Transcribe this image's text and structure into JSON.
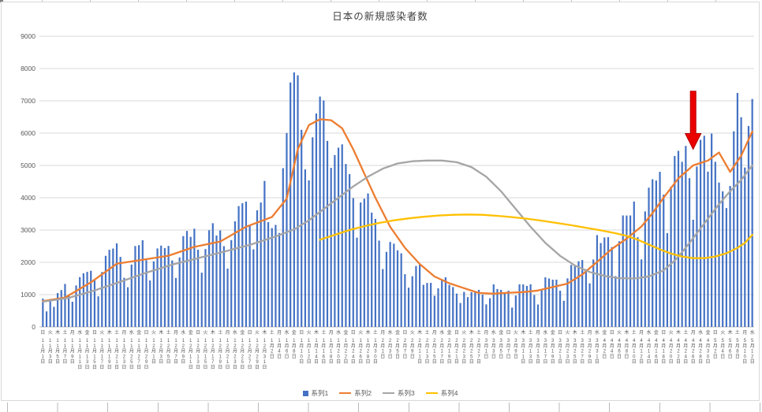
{
  "chart": {
    "title": "日本の新規感染者数",
    "y_axis": {
      "min": 0,
      "max": 9000,
      "step": 1000,
      "ticks": [
        0,
        1000,
        2000,
        3000,
        4000,
        5000,
        6000,
        7000,
        8000,
        9000
      ]
    },
    "colors": {
      "bar": "#4472C4",
      "line2": "#ED7D31",
      "line3": "#A5A5A5",
      "line4": "#FFC000",
      "grid": "#D9D9D9",
      "axis_line": "#BFBFBF",
      "text": "#595959",
      "arrow_fill": "#EB0000",
      "arrow_edge": "#B40000",
      "frame_border": "#D9D9D9"
    },
    "legend": [
      {
        "label": "系列1",
        "marker": "bar",
        "color": "#4472C4"
      },
      {
        "label": "系列2",
        "marker": "line",
        "color": "#ED7D31"
      },
      {
        "label": "系列3",
        "marker": "line",
        "color": "#A5A5A5"
      },
      {
        "label": "系列4",
        "marker": "line",
        "color": "#FFC000"
      }
    ],
    "annotation_arrow": {
      "day_index": 176,
      "tail_value": 7300,
      "tip_value": 5500
    }
  },
  "chart_data": {
    "type": "combo",
    "title": "日本の新規感染者数",
    "ylim": [
      0,
      9000
    ],
    "grid": "horizontal",
    "legend_position": "bottom",
    "x_label_step": 2,
    "x_labels": [
      "日|11月1日",
      "火|11月3日",
      "木|11月5日",
      "土|11月7日",
      "月|11月9日",
      "水|11月11日",
      "金|11月13日",
      "日|11月15日",
      "火|11月17日",
      "木|11月19日",
      "土|11月21日",
      "月|11月23日",
      "水|11月25日",
      "金|11月27日",
      "日|11月29日",
      "火|12月1日",
      "木|12月3日",
      "土|12月5日",
      "月|12月7日",
      "水|12月9日",
      "金|12月11日",
      "日|12月13日",
      "火|12月15日",
      "木|12月17日",
      "土|12月19日",
      "月|12月21日",
      "水|12月23日",
      "金|12月25日",
      "日|12月27日",
      "火|12月29日",
      "木|12月31日",
      "土|1月2日",
      "月|1月4日",
      "水|1月6日",
      "金|1月8日",
      "日|1月10日",
      "火|1月12日",
      "木|1月14日",
      "土|1月16日",
      "月|1月18日",
      "水|1月20日",
      "金|1月22日",
      "日|1月24日",
      "火|1月26日",
      "木|1月28日",
      "土|1月30日",
      "月|2月1日",
      "水|2月3日",
      "金|2月5日",
      "日|2月7日",
      "火|2月9日",
      "木|2月11日",
      "土|2月13日",
      "月|2月15日",
      "水|2月17日",
      "金|2月19日",
      "日|2月21日",
      "火|2月23日",
      "木|2月25日",
      "土|2月27日",
      "月|3月1日",
      "水|3月3日",
      "金|3月5日",
      "日|3月7日",
      "火|3月9日",
      "木|3月11日",
      "土|3月13日",
      "月|3月15日",
      "水|3月17日",
      "金|3月19日",
      "日|3月21日",
      "火|3月23日",
      "木|3月25日",
      "土|3月27日",
      "月|3月29日",
      "水|3月31日",
      "金|4月2日",
      "日|4月4日",
      "火|4月6日",
      "木|4月8日",
      "土|4月10日",
      "月|4月12日",
      "水|4月14日",
      "金|4月16日",
      "日|4月18日",
      "火|4月20日",
      "木|4月22日",
      "土|4月24日",
      "月|4月26日",
      "水|4月28日",
      "金|4月30日",
      "日|5月2日",
      "火|5月4日",
      "木|5月6日",
      "土|5月8日",
      "月|5月10日",
      "水|5月12日"
    ],
    "series": [
      {
        "name": "系列1",
        "type": "bar",
        "color": "#4472C4",
        "values": [
          877,
          481,
          867,
          623,
          1048,
          1141,
          1331,
          957,
          780,
          1284,
          1543,
          1661,
          1704,
          1739,
          1441,
          948,
          1699,
          2201,
          2387,
          2427,
          2586,
          2168,
          1521,
          1229,
          1930,
          2504,
          2531,
          2684,
          2066,
          1438,
          2030,
          2430,
          2518,
          2442,
          2508,
          2058,
          1516,
          2152,
          2812,
          2972,
          2788,
          3041,
          2389,
          1680,
          2410,
          2994,
          3211,
          2829,
          2988,
          2501,
          1806,
          2688,
          3271,
          3742,
          3832,
          3881,
          3127,
          2403,
          3610,
          3852,
          4520,
          3246,
          3059,
          3158,
          2908,
          4915,
          6004,
          7570,
          7882,
          7790,
          6102,
          4876,
          4537,
          5870,
          6607,
          7133,
          7014,
          5759,
          4925,
          5320,
          5549,
          5653,
          5045,
          4731,
          3989,
          2764,
          3853,
          3971,
          4133,
          3539,
          3344,
          2673,
          1792,
          2324,
          2631,
          2577,
          2372,
          2279,
          1632,
          1216,
          1570,
          1887,
          1933,
          1304,
          1362,
          1364,
          965,
          1194,
          1448,
          1538,
          1301,
          1234,
          1032,
          740,
          1084,
          923,
          1076,
          1083,
          1148,
          999,
          698,
          888,
          1316,
          1173,
          1148,
          1066,
          1121,
          599,
          973,
          1317,
          1316,
          1271,
          1320,
          989,
          695,
          1133,
          1535,
          1501,
          1463,
          1464,
          1121,
          809,
          1504,
          1917,
          1918,
          2032,
          2071,
          1785,
          1348,
          2087,
          2843,
          2597,
          2770,
          2779,
          2472,
          1572,
          2654,
          3451,
          3449,
          3451,
          3881,
          2777,
          2091,
          3576,
          4312,
          4571,
          4532,
          4802,
          4093,
          2905,
          4342,
          5291,
          5452,
          5113,
          5605,
          4605,
          3318,
          4965,
          5792,
          5918,
          4808,
          5986,
          5113,
          4470,
          4199,
          3680,
          4365,
          6057,
          7244,
          6493,
          4936,
          6223,
          7057
        ]
      },
      {
        "name": "系列2",
        "type": "line",
        "color": "#ED7D31",
        "points_day_value": [
          [
            0,
            800
          ],
          [
            6,
            910
          ],
          [
            13,
            1380
          ],
          [
            20,
            1956
          ],
          [
            27,
            2081
          ],
          [
            34,
            2205
          ],
          [
            41,
            2477
          ],
          [
            48,
            2643
          ],
          [
            55,
            3103
          ],
          [
            62,
            3402
          ],
          [
            66,
            3973
          ],
          [
            69,
            5500
          ],
          [
            72,
            6250
          ],
          [
            75,
            6430
          ],
          [
            78,
            6400
          ],
          [
            81,
            6150
          ],
          [
            84,
            5500
          ],
          [
            87,
            4750
          ],
          [
            90,
            4000
          ],
          [
            94,
            3100
          ],
          [
            98,
            2450
          ],
          [
            102,
            1950
          ],
          [
            106,
            1560
          ],
          [
            110,
            1350
          ],
          [
            114,
            1200
          ],
          [
            118,
            1050
          ],
          [
            122,
            1030
          ],
          [
            126,
            1059
          ],
          [
            130,
            1077
          ],
          [
            134,
            1126
          ],
          [
            138,
            1234
          ],
          [
            142,
            1342
          ],
          [
            146,
            1625
          ],
          [
            150,
            2012
          ],
          [
            154,
            2414
          ],
          [
            158,
            2735
          ],
          [
            162,
            3108
          ],
          [
            165,
            3523
          ],
          [
            168,
            3997
          ],
          [
            172,
            4600
          ],
          [
            176,
            5000
          ],
          [
            180,
            5150
          ],
          [
            183,
            5400
          ],
          [
            186,
            4800
          ],
          [
            189,
            5300
          ],
          [
            192,
            6050
          ]
        ]
      },
      {
        "name": "系列3",
        "type": "line",
        "color": "#A5A5A5",
        "points_day_value": [
          [
            0,
            780
          ],
          [
            7,
            900
          ],
          [
            14,
            1130
          ],
          [
            21,
            1400
          ],
          [
            28,
            1680
          ],
          [
            35,
            1930
          ],
          [
            42,
            2130
          ],
          [
            49,
            2330
          ],
          [
            56,
            2540
          ],
          [
            63,
            2800
          ],
          [
            68,
            3020
          ],
          [
            72,
            3300
          ],
          [
            76,
            3650
          ],
          [
            80,
            4000
          ],
          [
            84,
            4350
          ],
          [
            88,
            4650
          ],
          [
            92,
            4900
          ],
          [
            96,
            5060
          ],
          [
            100,
            5130
          ],
          [
            104,
            5150
          ],
          [
            108,
            5150
          ],
          [
            112,
            5100
          ],
          [
            116,
            4950
          ],
          [
            120,
            4650
          ],
          [
            124,
            4200
          ],
          [
            128,
            3650
          ],
          [
            132,
            3100
          ],
          [
            136,
            2600
          ],
          [
            140,
            2200
          ],
          [
            144,
            1900
          ],
          [
            148,
            1700
          ],
          [
            152,
            1580
          ],
          [
            156,
            1510
          ],
          [
            160,
            1500
          ],
          [
            164,
            1560
          ],
          [
            168,
            1750
          ],
          [
            171,
            2050
          ],
          [
            174,
            2450
          ],
          [
            177,
            2900
          ],
          [
            180,
            3350
          ],
          [
            183,
            3800
          ],
          [
            186,
            4200
          ],
          [
            189,
            4550
          ],
          [
            192,
            5000
          ]
        ]
      },
      {
        "name": "系列4",
        "type": "line",
        "color": "#FFC000",
        "points_day_value": [
          [
            75,
            2700
          ],
          [
            79,
            2850
          ],
          [
            83,
            3000
          ],
          [
            87,
            3120
          ],
          [
            91,
            3220
          ],
          [
            95,
            3300
          ],
          [
            99,
            3360
          ],
          [
            103,
            3410
          ],
          [
            107,
            3450
          ],
          [
            111,
            3470
          ],
          [
            115,
            3480
          ],
          [
            119,
            3470
          ],
          [
            123,
            3440
          ],
          [
            127,
            3400
          ],
          [
            131,
            3350
          ],
          [
            135,
            3290
          ],
          [
            139,
            3220
          ],
          [
            143,
            3150
          ],
          [
            147,
            3070
          ],
          [
            151,
            2990
          ],
          [
            155,
            2900
          ],
          [
            158,
            2820
          ],
          [
            161,
            2700
          ],
          [
            164,
            2550
          ],
          [
            167,
            2400
          ],
          [
            170,
            2270
          ],
          [
            173,
            2180
          ],
          [
            176,
            2130
          ],
          [
            179,
            2130
          ],
          [
            182,
            2180
          ],
          [
            185,
            2280
          ],
          [
            188,
            2450
          ],
          [
            190,
            2600
          ],
          [
            192,
            2850
          ]
        ]
      }
    ]
  }
}
